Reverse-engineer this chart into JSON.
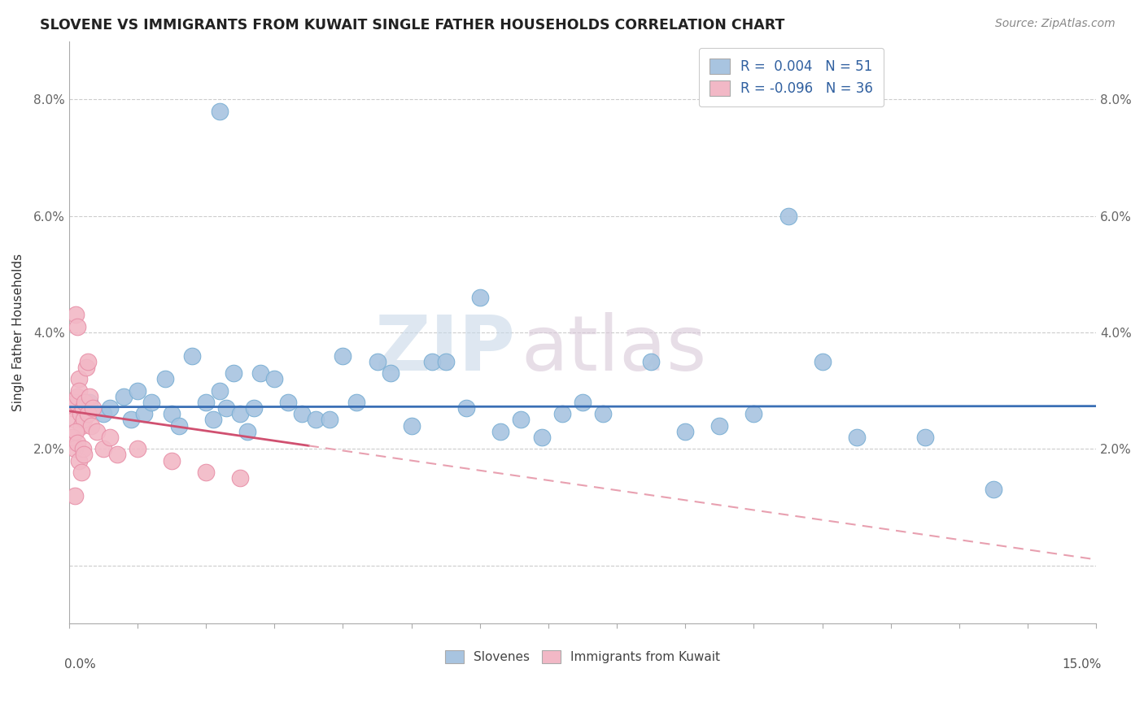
{
  "title": "SLOVENE VS IMMIGRANTS FROM KUWAIT SINGLE FATHER HOUSEHOLDS CORRELATION CHART",
  "source": "Source: ZipAtlas.com",
  "ylabel": "Single Father Households",
  "xlim": [
    0.0,
    15.0
  ],
  "ylim": [
    -1.0,
    9.0
  ],
  "ytick_pos": [
    0.0,
    2.0,
    4.0,
    6.0,
    8.0
  ],
  "ytick_labels": [
    "",
    "2.0%",
    "4.0%",
    "6.0%",
    "8.0%"
  ],
  "blue_color": "#a8c4e0",
  "blue_edge": "#7aafd4",
  "pink_color": "#f2b8c6",
  "pink_edge": "#e890a8",
  "line_blue_color": "#3a6fb5",
  "line_pink_solid_color": "#d05070",
  "line_pink_dash_color": "#e8a0b0",
  "blue_scatter": [
    [
      0.3,
      2.8
    ],
    [
      0.5,
      2.6
    ],
    [
      0.6,
      2.7
    ],
    [
      0.8,
      2.9
    ],
    [
      0.9,
      2.5
    ],
    [
      1.0,
      3.0
    ],
    [
      1.1,
      2.6
    ],
    [
      1.2,
      2.8
    ],
    [
      1.4,
      3.2
    ],
    [
      1.5,
      2.6
    ],
    [
      1.6,
      2.4
    ],
    [
      1.8,
      3.6
    ],
    [
      2.0,
      2.8
    ],
    [
      2.1,
      2.5
    ],
    [
      2.2,
      3.0
    ],
    [
      2.3,
      2.7
    ],
    [
      2.4,
      3.3
    ],
    [
      2.5,
      2.6
    ],
    [
      2.6,
      2.3
    ],
    [
      2.7,
      2.7
    ],
    [
      2.8,
      3.3
    ],
    [
      3.0,
      3.2
    ],
    [
      3.2,
      2.8
    ],
    [
      3.4,
      2.6
    ],
    [
      3.6,
      2.5
    ],
    [
      3.8,
      2.5
    ],
    [
      4.0,
      3.6
    ],
    [
      4.2,
      2.8
    ],
    [
      4.5,
      3.5
    ],
    [
      4.7,
      3.3
    ],
    [
      5.0,
      2.4
    ],
    [
      5.3,
      3.5
    ],
    [
      5.5,
      3.5
    ],
    [
      5.8,
      2.7
    ],
    [
      6.0,
      4.6
    ],
    [
      6.3,
      2.3
    ],
    [
      6.6,
      2.5
    ],
    [
      6.9,
      2.2
    ],
    [
      7.2,
      2.6
    ],
    [
      7.5,
      2.8
    ],
    [
      7.8,
      2.6
    ],
    [
      8.5,
      3.5
    ],
    [
      9.0,
      2.3
    ],
    [
      9.5,
      2.4
    ],
    [
      10.0,
      2.6
    ],
    [
      10.5,
      6.0
    ],
    [
      11.0,
      3.5
    ],
    [
      11.5,
      2.2
    ],
    [
      12.5,
      2.2
    ],
    [
      13.5,
      1.3
    ],
    [
      2.2,
      7.8
    ]
  ],
  "pink_scatter": [
    [
      0.05,
      2.7
    ],
    [
      0.08,
      2.5
    ],
    [
      0.1,
      2.8
    ],
    [
      0.12,
      2.9
    ],
    [
      0.14,
      3.2
    ],
    [
      0.15,
      3.0
    ],
    [
      0.17,
      2.6
    ],
    [
      0.18,
      2.4
    ],
    [
      0.2,
      2.7
    ],
    [
      0.22,
      2.5
    ],
    [
      0.23,
      2.8
    ],
    [
      0.25,
      3.4
    ],
    [
      0.27,
      3.5
    ],
    [
      0.28,
      2.6
    ],
    [
      0.3,
      2.9
    ],
    [
      0.32,
      2.4
    ],
    [
      0.35,
      2.7
    ],
    [
      0.1,
      4.3
    ],
    [
      0.12,
      4.1
    ],
    [
      0.05,
      2.2
    ],
    [
      0.08,
      2.0
    ],
    [
      0.1,
      2.3
    ],
    [
      0.12,
      2.1
    ],
    [
      0.15,
      1.8
    ],
    [
      0.18,
      1.6
    ],
    [
      0.2,
      2.0
    ],
    [
      0.22,
      1.9
    ],
    [
      0.4,
      2.3
    ],
    [
      0.5,
      2.0
    ],
    [
      0.6,
      2.2
    ],
    [
      0.7,
      1.9
    ],
    [
      1.0,
      2.0
    ],
    [
      1.5,
      1.8
    ],
    [
      2.0,
      1.6
    ],
    [
      2.5,
      1.5
    ],
    [
      0.08,
      1.2
    ]
  ],
  "blue_line_y_intercept": 2.72,
  "blue_line_slope": 0.001,
  "pink_solid_x_start": 0.0,
  "pink_solid_x_end": 3.5,
  "pink_line_y_intercept": 2.65,
  "pink_line_slope": -0.17
}
